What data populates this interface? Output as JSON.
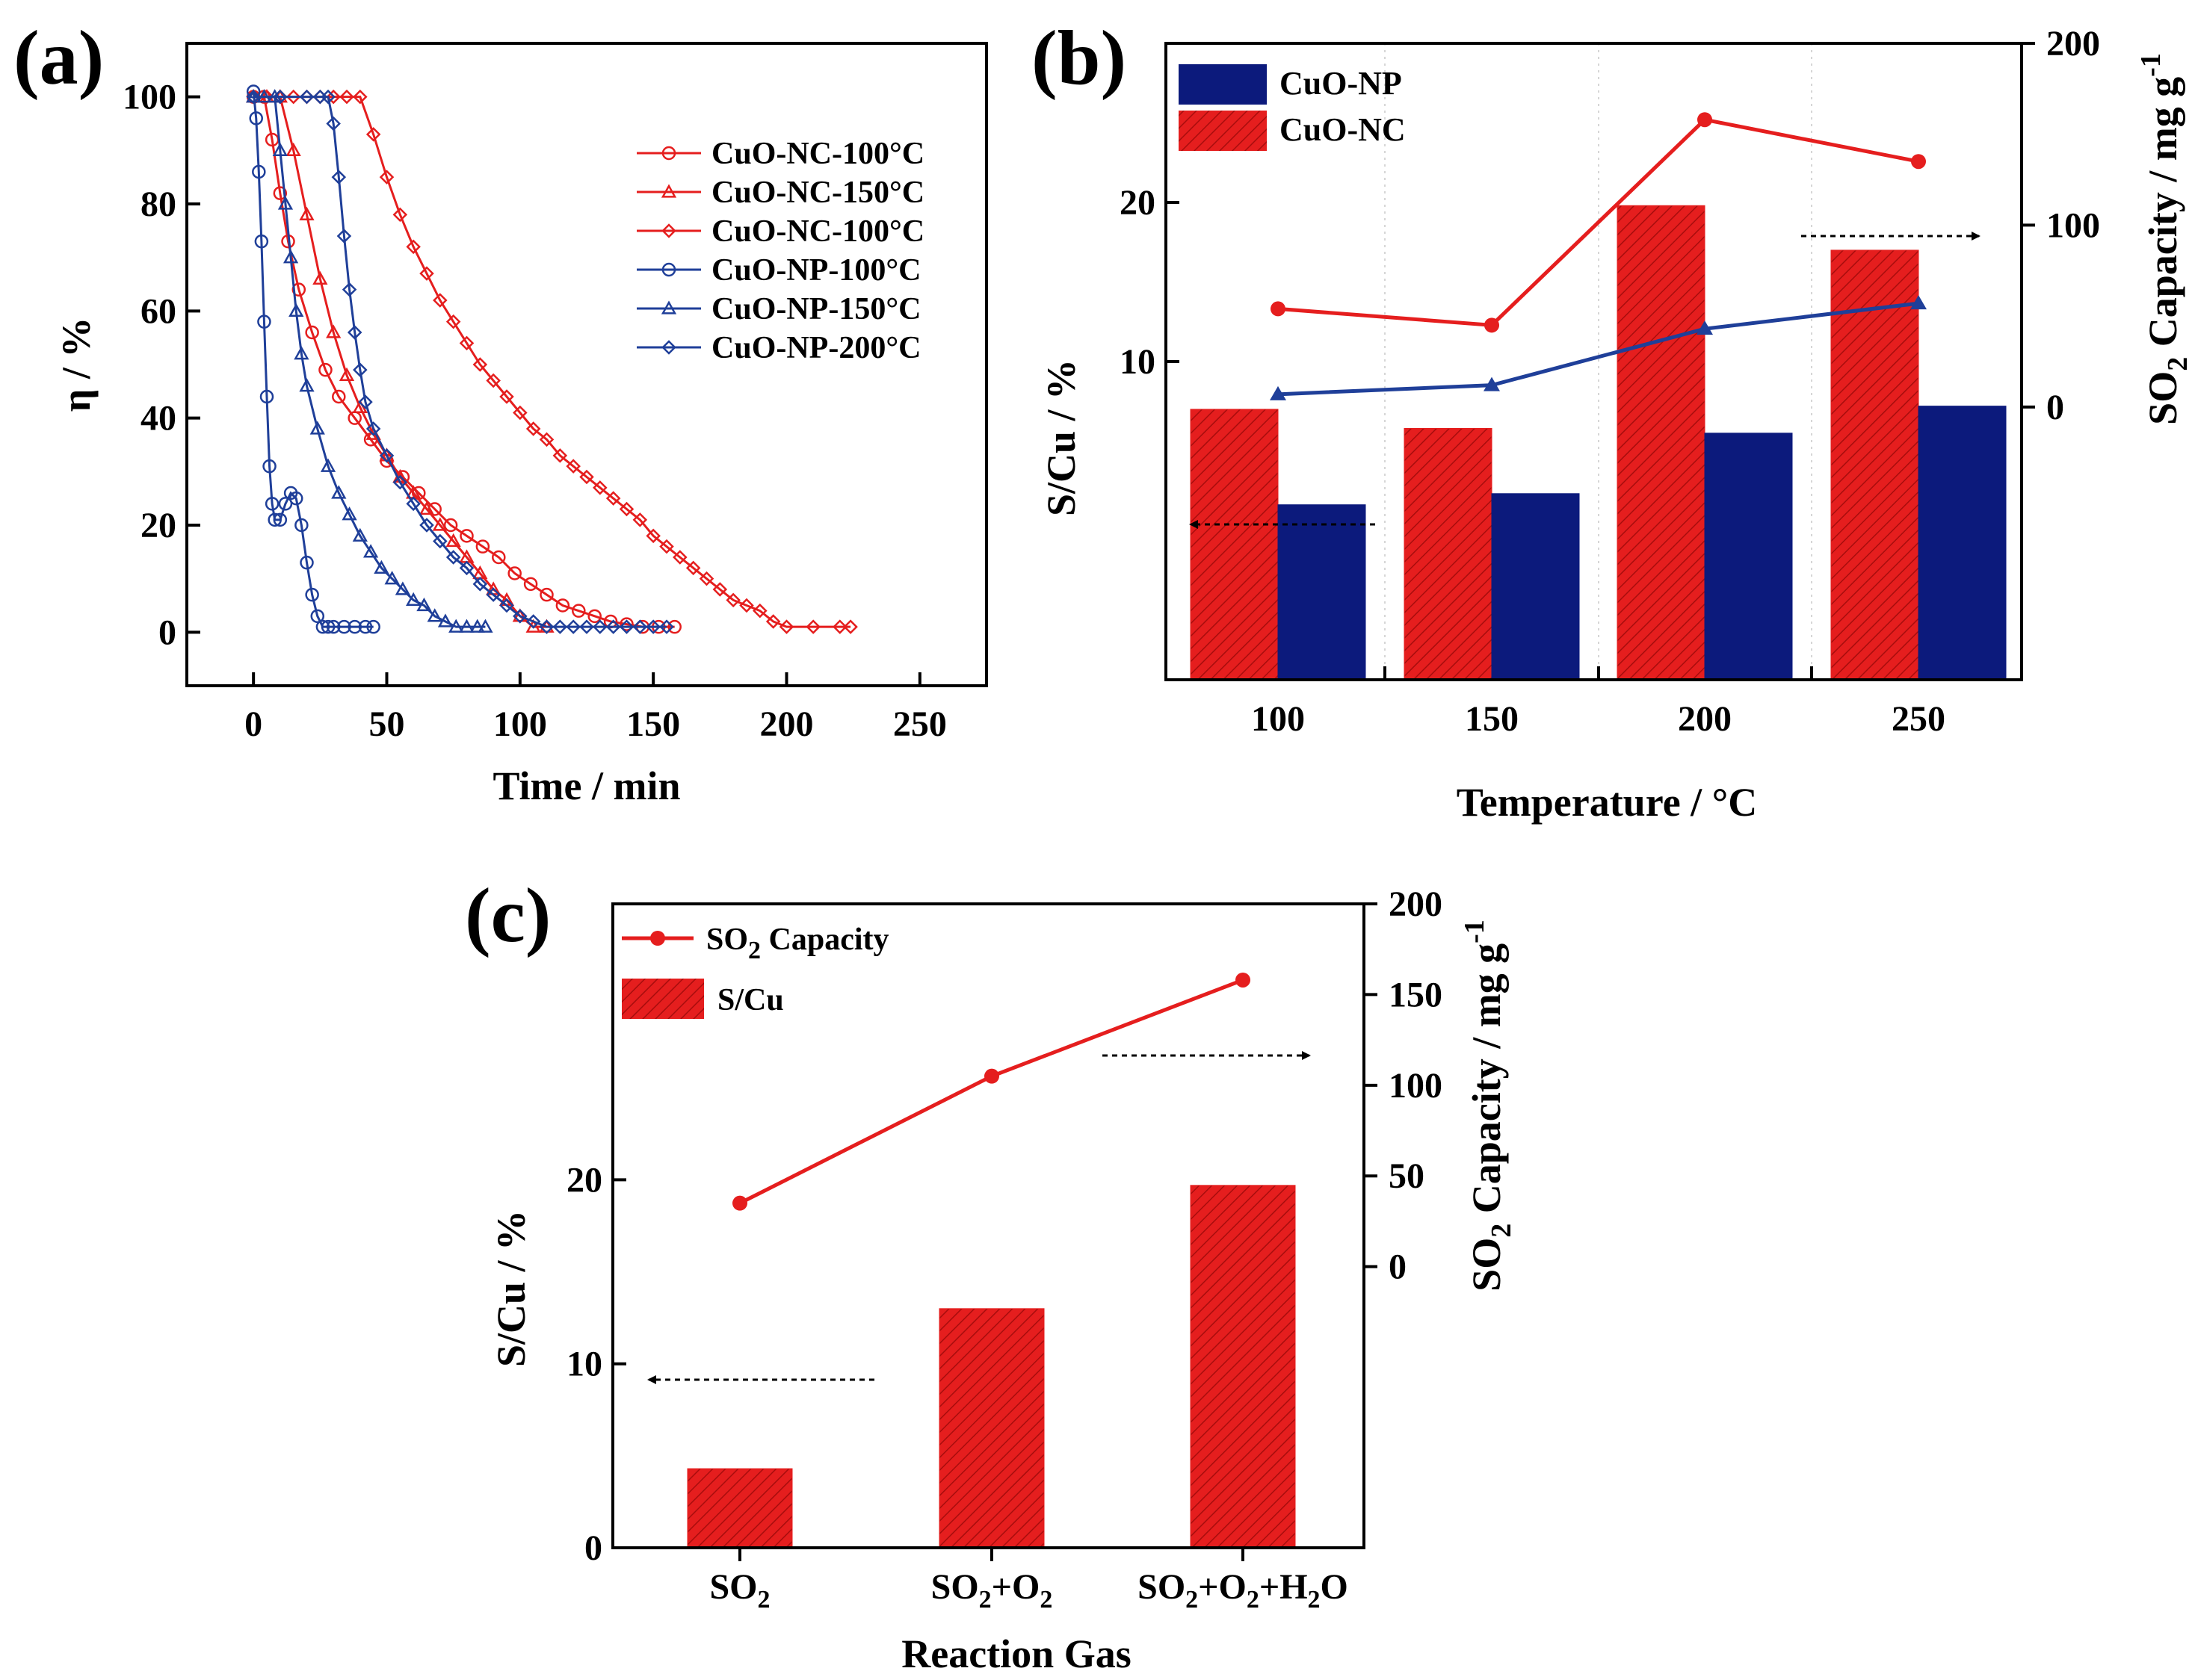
{
  "chart_data": [
    {
      "id": "a",
      "panel_label": "(a)",
      "type": "line",
      "xlabel": "Time / min",
      "ylabel": "η / %",
      "xlim": [
        -25,
        275
      ],
      "ylim": [
        -10,
        110
      ],
      "xticks": [
        0,
        50,
        100,
        150,
        200,
        250
      ],
      "yticks": [
        0,
        20,
        40,
        60,
        80,
        100
      ],
      "series": [
        {
          "name": "CuO-NC-100°C",
          "color": "#e51e1e",
          "marker": "circle",
          "x": [
            0,
            4,
            7,
            10,
            13,
            17,
            22,
            27,
            32,
            38,
            44,
            50,
            56,
            62,
            68,
            74,
            80,
            86,
            92,
            98,
            104,
            110,
            116,
            122,
            128,
            134,
            140,
            146,
            152,
            158
          ],
          "y": [
            100,
            100,
            92,
            82,
            73,
            64,
            56,
            49,
            44,
            40,
            36,
            32,
            29,
            26,
            23,
            20,
            18,
            16,
            14,
            11,
            9,
            7,
            5,
            4,
            3,
            2,
            1.5,
            1,
            1,
            1
          ]
        },
        {
          "name": "CuO-NC-150°C",
          "color": "#e51e1e",
          "marker": "triangle",
          "x": [
            0,
            5,
            10,
            15,
            20,
            25,
            30,
            35,
            40,
            45,
            50,
            55,
            60,
            65,
            70,
            75,
            80,
            85,
            90,
            95,
            100,
            105,
            110
          ],
          "y": [
            100,
            100,
            100,
            90,
            78,
            66,
            56,
            48,
            42,
            37,
            33,
            29,
            26,
            23,
            20,
            17,
            14,
            11,
            8,
            6,
            3,
            1,
            1
          ]
        },
        {
          "name": "CuO-NC-100°C",
          "color": "#e51e1e",
          "marker": "diamond",
          "x": [
            0,
            5,
            10,
            15,
            20,
            25,
            30,
            35,
            40,
            45,
            50,
            55,
            60,
            65,
            70,
            75,
            80,
            85,
            90,
            95,
            100,
            105,
            110,
            115,
            120,
            125,
            130,
            135,
            140,
            145,
            150,
            155,
            160,
            165,
            170,
            175,
            180,
            185,
            190,
            195,
            200,
            210,
            220,
            224
          ],
          "y": [
            100,
            100,
            100,
            100,
            100,
            100,
            100,
            100,
            100,
            93,
            85,
            78,
            72,
            67,
            62,
            58,
            54,
            50,
            47,
            44,
            41,
            38,
            36,
            33,
            31,
            29,
            27,
            25,
            23,
            21,
            18,
            16,
            14,
            12,
            10,
            8,
            6,
            5,
            4,
            2,
            1,
            1,
            1,
            1
          ]
        },
        {
          "name": "CuO-NP-100°C",
          "color": "#1f3f99",
          "marker": "circle",
          "x": [
            0,
            1,
            2,
            3,
            4,
            5,
            6,
            7,
            8,
            10,
            12,
            14,
            16,
            18,
            20,
            22,
            24,
            26,
            28,
            30,
            34,
            38,
            42,
            45
          ],
          "y": [
            101,
            96,
            86,
            73,
            58,
            44,
            31,
            24,
            21,
            21,
            24,
            26,
            25,
            20,
            13,
            7,
            3,
            1,
            1,
            1,
            1,
            1,
            1,
            1
          ]
        },
        {
          "name": "CuO-NP-150°C",
          "color": "#1f3f99",
          "marker": "triangle",
          "x": [
            0,
            4,
            8,
            10,
            12,
            14,
            16,
            18,
            20,
            24,
            28,
            32,
            36,
            40,
            44,
            48,
            52,
            56,
            60,
            64,
            68,
            72,
            76,
            80,
            84,
            87
          ],
          "y": [
            100,
            100,
            100,
            90,
            80,
            70,
            60,
            52,
            46,
            38,
            31,
            26,
            22,
            18,
            15,
            12,
            10,
            8,
            6,
            5,
            3,
            2,
            1,
            1,
            1,
            1
          ]
        },
        {
          "name": "CuO-NP-200°C",
          "color": "#1f3f99",
          "marker": "diamond",
          "x": [
            0,
            10,
            20,
            25,
            28,
            30,
            32,
            34,
            36,
            38,
            40,
            42,
            45,
            50,
            55,
            60,
            65,
            70,
            75,
            80,
            85,
            90,
            95,
            100,
            105,
            110,
            115,
            120,
            125,
            130,
            135,
            140,
            145,
            150,
            155
          ],
          "y": [
            100,
            100,
            100,
            100,
            100,
            95,
            85,
            74,
            64,
            56,
            49,
            43,
            38,
            33,
            28,
            24,
            20,
            17,
            14,
            12,
            9,
            7,
            5,
            3,
            2,
            1,
            1,
            1,
            1,
            1,
            1,
            1,
            1,
            1,
            1
          ]
        }
      ]
    },
    {
      "id": "b",
      "panel_label": "(b)",
      "type": "bar+line",
      "xlabel": "Temperature / °C",
      "ylabel_left": "S/Cu / %",
      "ylabel_right_parts": [
        "SO",
        "2",
        " Capacity / mg g",
        "-1"
      ],
      "categories": [
        "100",
        "150",
        "200",
        "250"
      ],
      "left_ylim": [
        -10,
        30
      ],
      "left_yticks": [
        10,
        20
      ],
      "right_ylim": [
        -150,
        200
      ],
      "right_yticks": [
        0,
        100,
        200
      ],
      "bars": [
        {
          "name": "CuO-NC",
          "color": "#e51e1e",
          "pattern": "hatch",
          "values": [
            7.0,
            5.8,
            19.8,
            17.0
          ]
        },
        {
          "name": "CuO-NP",
          "color": "#0c1a7c",
          "pattern": "solid",
          "values": [
            1.0,
            1.7,
            5.5,
            7.2
          ]
        }
      ],
      "lines": [
        {
          "name": "CuO-NC capacity",
          "color": "#e51e1e",
          "values": [
            54,
            45,
            158,
            135
          ]
        },
        {
          "name": "CuO-NP capacity",
          "color": "#1f3f99",
          "values": [
            7,
            12,
            43,
            57
          ]
        }
      ]
    },
    {
      "id": "c",
      "panel_label": "(c)",
      "type": "bar+line",
      "xlabel": "Reaction Gas",
      "ylabel_left": "S/Cu / %",
      "ylabel_right_parts": [
        "SO",
        "2",
        " Capacity / mg g",
        "-1"
      ],
      "categories": [
        [
          [
            "SO",
            ""
          ],
          [
            "2",
            "sub"
          ]
        ],
        [
          [
            "SO",
            ""
          ],
          [
            "2",
            "sub"
          ],
          [
            "+O",
            ""
          ],
          [
            "2",
            "sub"
          ]
        ],
        [
          [
            "SO",
            ""
          ],
          [
            "2",
            "sub"
          ],
          [
            "+O",
            ""
          ],
          [
            "2",
            "sub"
          ],
          [
            "+H",
            ""
          ],
          [
            "2",
            "sub"
          ],
          [
            "O",
            ""
          ]
        ]
      ],
      "left_ylim": [
        0,
        35
      ],
      "left_yticks": [
        0,
        10,
        20
      ],
      "right_ylim": [
        -155,
        200
      ],
      "right_yticks": [
        0,
        50,
        100,
        150,
        200
      ],
      "bars": [
        {
          "name": "S/Cu",
          "color": "#e51e1e",
          "pattern": "hatch",
          "values": [
            4.3,
            13.0,
            19.7
          ]
        }
      ],
      "lines": [
        {
          "name": "SO2 Capacity",
          "color": "#e51e1e",
          "values": [
            35,
            105,
            158
          ]
        }
      ]
    }
  ],
  "legend_a": [
    "CuO-NC-100°C",
    "CuO-NC-150°C",
    "CuO-NC-100°C",
    "CuO-NP-100°C",
    "CuO-NP-150°C",
    "CuO-NP-200°C"
  ],
  "legend_b": [
    "CuO-NP",
    "CuO-NC"
  ],
  "legend_c": {
    "line_parts": [
      "SO",
      "2",
      " Capacity"
    ],
    "bar": "S/Cu"
  }
}
